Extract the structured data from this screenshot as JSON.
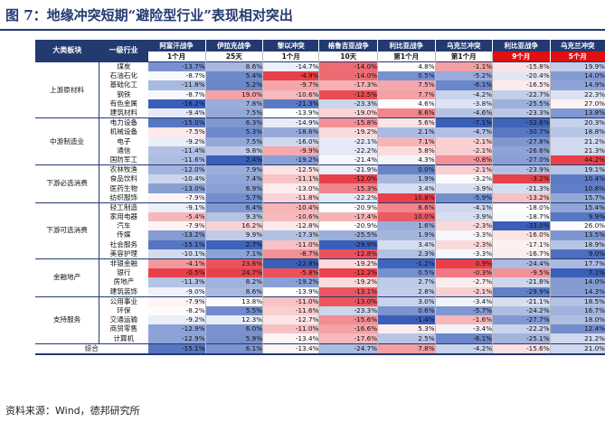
{
  "title": "图 7：地缘冲突短期“避险型行业”表现相对突出",
  "source": "资料来源：Wind，德邦研究所",
  "header": {
    "sector_label": "大类板块",
    "industry_label": "一级行业",
    "events": [
      "阿富汗战争",
      "伊拉克战争",
      "黎以冲突",
      "格鲁吉亚战争",
      "利比亚战争",
      "乌克兰冲突",
      "利比亚战争",
      "乌克兰冲突"
    ],
    "periods": [
      "1个月",
      "25天",
      "1个月",
      "10天",
      "第1个月",
      "第1个月",
      "9个月",
      "5个月"
    ]
  },
  "colors": {
    "header_bg": "#233a71",
    "header_red": "#e01010",
    "positive_max": "#e8404a",
    "negative_max": "#3a5fb8"
  },
  "groups": [
    {
      "sector": "上游原材料",
      "rows": [
        {
          "industry": "煤炭",
          "values": [
            -13.7,
            8.6,
            -14.7,
            -14.0,
            4.8,
            -1.1,
            -15.8,
            19.9
          ]
        },
        {
          "industry": "石油石化",
          "values": [
            -8.7,
            5.4,
            -4.9,
            -14.0,
            0.5,
            -5.2,
            -20.4,
            14.0
          ]
        },
        {
          "industry": "基础化工",
          "values": [
            -11.8,
            5.2,
            -9.7,
            -17.3,
            7.5,
            -6.1,
            -16.5,
            14.9
          ]
        },
        {
          "industry": "钢铁",
          "values": [
            -8.7,
            19.0,
            -10.6,
            -12.5,
            7.7,
            -4.2,
            -22.7,
            22.3
          ]
        },
        {
          "industry": "有色金属",
          "values": [
            -16.2,
            7.8,
            -21.3,
            -23.3,
            4.6,
            -3.8,
            -25.5,
            27.0
          ]
        },
        {
          "industry": "建筑材料",
          "values": [
            -9.4,
            7.5,
            -13.9,
            -19.0,
            8.6,
            -4.6,
            -23.3,
            13.8
          ]
        }
      ]
    },
    {
      "sector": "中游制造业",
      "rows": [
        {
          "industry": "电力设备",
          "values": [
            -15.0,
            6.3,
            -14.9,
            -15.8,
            5.6,
            -7.1,
            -32.6,
            20.3
          ]
        },
        {
          "industry": "机械设备",
          "values": [
            -7.5,
            5.3,
            -18.6,
            -19.2,
            2.1,
            -4.7,
            -30.7,
            18.8
          ]
        },
        {
          "industry": "电子",
          "values": [
            -9.2,
            7.5,
            -16.0,
            -22.1,
            7.1,
            -2.1,
            -27.8,
            21.2
          ]
        },
        {
          "industry": "通信",
          "values": [
            -11.4,
            9.8,
            -9.9,
            -22.2,
            5.8,
            -2.1,
            -26.6,
            21.3
          ]
        },
        {
          "industry": "国防军工",
          "values": [
            -11.6,
            2.4,
            -19.2,
            -21.4,
            4.3,
            -0.8,
            -27.0,
            44.2
          ]
        }
      ]
    },
    {
      "sector": "下游必选消费",
      "rows": [
        {
          "industry": "农林牧渔",
          "values": [
            -12.0,
            7.9,
            -12.5,
            -21.9,
            0.0,
            -2.1,
            -23.9,
            19.1
          ]
        },
        {
          "industry": "食品饮料",
          "values": [
            -10.4,
            7.4,
            -11.1,
            -12.0,
            1.9,
            -3.2,
            -3.2,
            10.4
          ]
        },
        {
          "industry": "医药生物",
          "values": [
            -13.0,
            6.9,
            -13.0,
            -15.3,
            3.4,
            -3.9,
            -21.3,
            10.8
          ]
        },
        {
          "industry": "纺织服饰",
          "values": [
            -7.9,
            5.7,
            -11.8,
            -22.2,
            10.8,
            -5.9,
            -13.2,
            15.7
          ]
        }
      ]
    },
    {
      "sector": "下游可选消费",
      "rows": [
        {
          "industry": "轻工制造",
          "values": [
            -9.1,
            6.4,
            -10.4,
            -20.9,
            8.6,
            -4.1,
            -18.0,
            15.4
          ]
        },
        {
          "industry": "家用电器",
          "values": [
            -5.4,
            9.3,
            -10.6,
            -17.4,
            10.0,
            -3.9,
            -18.7,
            9.9
          ]
        },
        {
          "industry": "汽车",
          "values": [
            -7.9,
            16.2,
            -12.8,
            -20.9,
            1.6,
            -2.3,
            -33.0,
            26.0
          ]
        },
        {
          "industry": "传媒",
          "values": [
            -13.2,
            9.9,
            -17.3,
            -25.5,
            1.9,
            -3.3,
            -16.0,
            13.5
          ]
        },
        {
          "industry": "社会服务",
          "values": [
            -15.1,
            2.7,
            -11.0,
            -29.9,
            3.4,
            -2.3,
            -17.1,
            18.9
          ]
        },
        {
          "industry": "美容护理",
          "values": [
            -10.1,
            7.1,
            -8.7,
            -12.8,
            2.3,
            -3.3,
            -16.7,
            9.0
          ]
        }
      ]
    },
    {
      "sector": "金融地产",
      "rows": [
        {
          "industry": "非银金融",
          "values": [
            -4.1,
            23.6,
            -22.8,
            -19.2,
            -1.2,
            0.9,
            -24.4,
            17.7
          ]
        },
        {
          "industry": "银行",
          "values": [
            -0.5,
            24.7,
            -5.8,
            -12.2,
            0.5,
            -0.3,
            -9.5,
            7.1
          ]
        },
        {
          "industry": "房地产",
          "values": [
            -11.3,
            8.2,
            -19.2,
            -19.2,
            2.7,
            -2.7,
            -21.8,
            14.0
          ]
        },
        {
          "industry": "建筑装饰",
          "values": [
            -9.0,
            8.6,
            -13.9,
            -13.1,
            2.8,
            -2.1,
            -29.9,
            14.3
          ]
        }
      ]
    },
    {
      "sector": "支持服务",
      "rows": [
        {
          "industry": "公用事业",
          "values": [
            -7.9,
            13.8,
            -11.0,
            -13.0,
            3.0,
            -3.4,
            -21.1,
            18.5
          ]
        },
        {
          "industry": "环保",
          "values": [
            -8.2,
            5.5,
            -11.6,
            -23.3,
            0.6,
            -5.7,
            -24.2,
            16.7
          ]
        },
        {
          "industry": "交通运输",
          "values": [
            -9.2,
            12.3,
            -12.7,
            -15.6,
            -1.4,
            -1.6,
            -27.7,
            18.0
          ]
        },
        {
          "industry": "商贸零售",
          "values": [
            -12.9,
            6.0,
            -11.0,
            -16.6,
            5.3,
            -3.4,
            -22.2,
            12.4
          ]
        },
        {
          "industry": "计算机",
          "values": [
            -12.9,
            5.9,
            -13.4,
            -17.6,
            2.5,
            -6.1,
            -25.1,
            21.2
          ]
        }
      ]
    }
  ],
  "total": {
    "label": "综合",
    "values": [
      -15.1,
      6.1,
      -13.4,
      -24.7,
      7.8,
      -4.2,
      -15.6,
      21.0
    ]
  }
}
